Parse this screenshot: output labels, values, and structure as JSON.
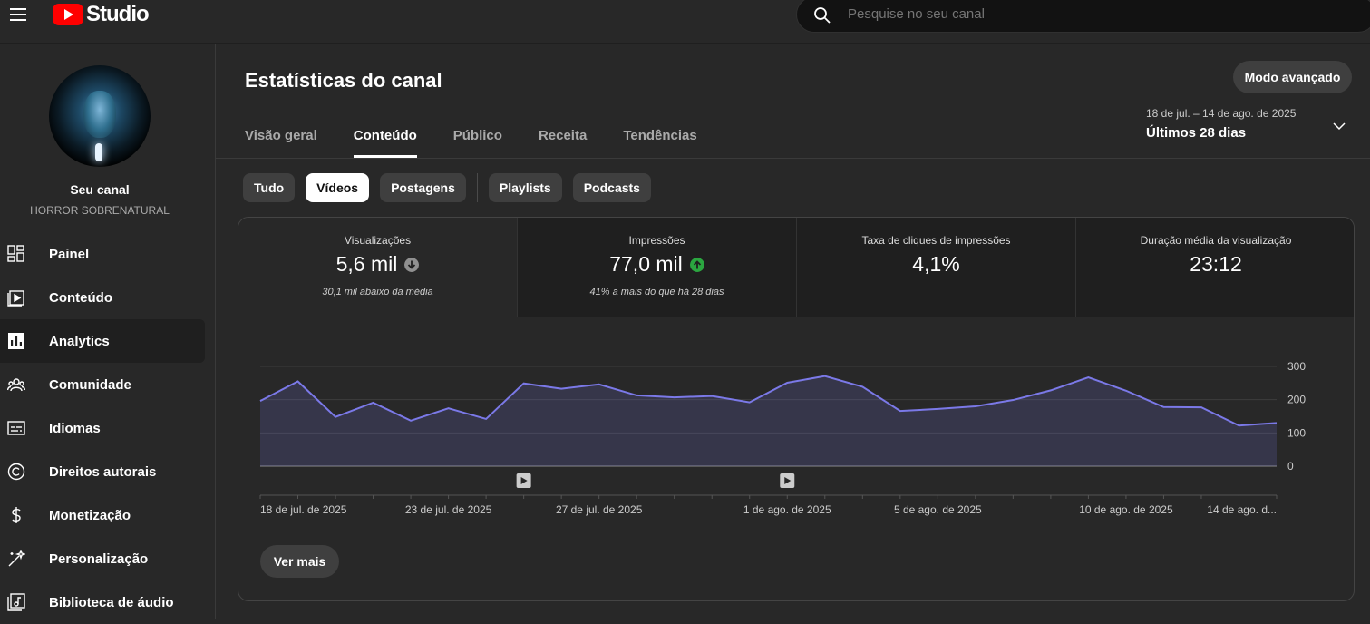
{
  "topbar": {
    "logo_text": "Studio",
    "search_placeholder": "Pesquise no seu canal"
  },
  "sidebar": {
    "channel_name": "Seu canal",
    "channel_handle": "HORROR SOBRENATURAL",
    "items": [
      {
        "label": "Painel",
        "icon": "dashboard-icon"
      },
      {
        "label": "Conteúdo",
        "icon": "content-icon"
      },
      {
        "label": "Analytics",
        "icon": "analytics-icon",
        "active": true
      },
      {
        "label": "Comunidade",
        "icon": "community-icon"
      },
      {
        "label": "Idiomas",
        "icon": "subtitles-icon"
      },
      {
        "label": "Direitos autorais",
        "icon": "copyright-icon"
      },
      {
        "label": "Monetização",
        "icon": "dollar-icon"
      },
      {
        "label": "Personalização",
        "icon": "magic-wand-icon"
      },
      {
        "label": "Biblioteca de áudio",
        "icon": "audio-library-icon"
      }
    ]
  },
  "page": {
    "title": "Estatísticas do canal",
    "advanced_mode": "Modo avançado",
    "tabs": [
      "Visão geral",
      "Conteúdo",
      "Público",
      "Receita",
      "Tendências"
    ],
    "active_tab": "Conteúdo",
    "date_range_sub": "18 de jul. – 14 de ago. de 2025",
    "date_range_main": "Últimos 28 dias",
    "chips": [
      "Tudo",
      "Vídeos",
      "Postagens",
      "Playlists",
      "Podcasts"
    ],
    "active_chip": "Vídeos"
  },
  "metrics": [
    {
      "label": "Visualizações",
      "value": "5,6 mil",
      "trend": "down",
      "sub": "30,1 mil abaixo da média"
    },
    {
      "label": "Impressões",
      "value": "77,0 mil",
      "trend": "up",
      "sub": "41% a mais do que há 28 dias"
    },
    {
      "label": "Taxa de cliques de impressões",
      "value": "4,1%",
      "trend": "",
      "sub": ""
    },
    {
      "label": "Duração média da visualização",
      "value": "23:12",
      "trend": "",
      "sub": ""
    }
  ],
  "colors": {
    "line": "#7b79e8",
    "trend_up": "#2ba640",
    "trend_down": "#909090"
  },
  "chart_data": {
    "type": "area",
    "x": [
      "18 de jul.",
      "19 de jul.",
      "20 de jul.",
      "21 de jul.",
      "22 de jul.",
      "23 de jul.",
      "24 de jul.",
      "25 de jul.",
      "26 de jul.",
      "27 de jul.",
      "28 de jul.",
      "29 de jul.",
      "30 de jul.",
      "31 de jul.",
      "1 de ago.",
      "2 de ago.",
      "3 de ago.",
      "4 de ago.",
      "5 de ago.",
      "6 de ago.",
      "7 de ago.",
      "8 de ago.",
      "9 de ago.",
      "10 de ago.",
      "11 de ago.",
      "12 de ago.",
      "13 de ago.",
      "14 de ago."
    ],
    "values": [
      196,
      255,
      148,
      191,
      137,
      174,
      142,
      249,
      233,
      246,
      213,
      207,
      211,
      192,
      251,
      271,
      239,
      166,
      172,
      180,
      199,
      228,
      267,
      227,
      178,
      177,
      122,
      130
    ],
    "ylim": [
      0,
      300
    ],
    "yticks": [
      "300",
      "200",
      "100",
      "0"
    ],
    "xtick_labels": [
      "18 de jul. de 2025",
      "23 de jul. de 2025",
      "27 de jul. de 2025",
      "1 de ago. de 2025",
      "5 de ago. de 2025",
      "10 de ago. de 2025",
      "14 de ago. d..."
    ],
    "xtick_index": [
      0,
      5,
      9,
      14,
      18,
      23,
      27
    ],
    "video_markers_index": [
      7,
      14
    ],
    "grid": true
  },
  "footer": {
    "see_more": "Ver mais"
  }
}
